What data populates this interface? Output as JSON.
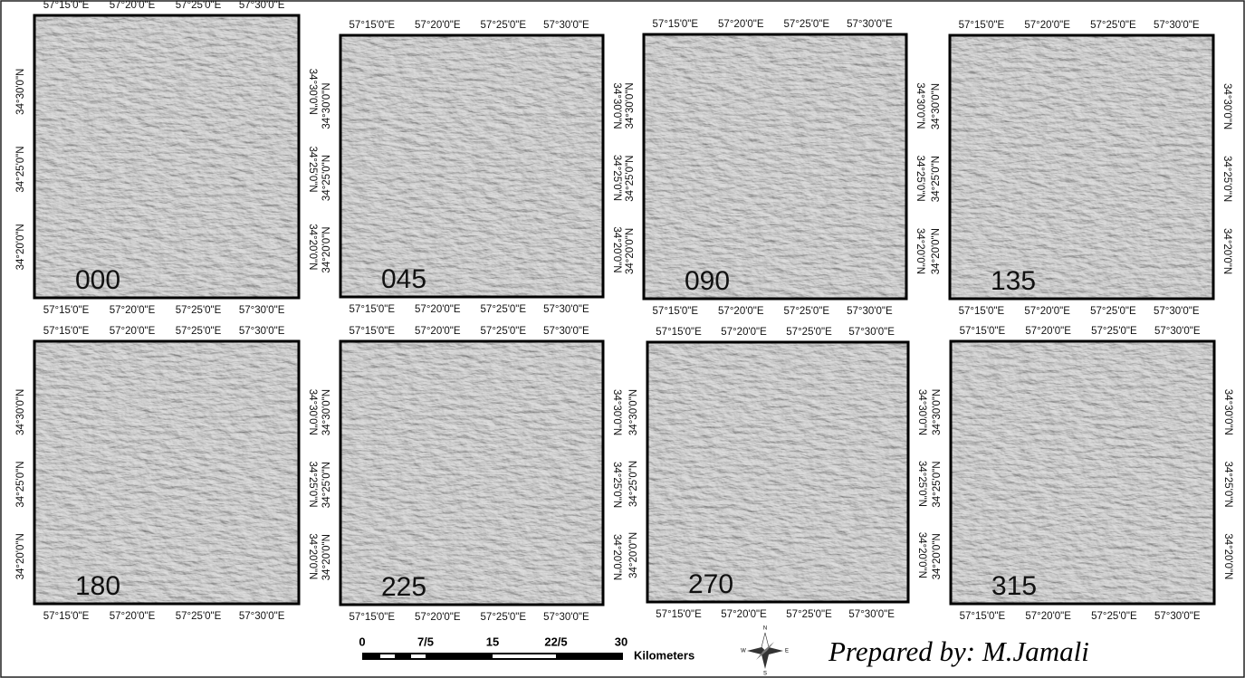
{
  "panels": [
    {
      "label": "000"
    },
    {
      "label": "045"
    },
    {
      "label": "090"
    },
    {
      "label": "135"
    },
    {
      "label": "180"
    },
    {
      "label": "225"
    },
    {
      "label": "270"
    },
    {
      "label": "315"
    }
  ],
  "longitude_labels": [
    "57°15'0\"E",
    "57°20'0\"E",
    "57°25'0\"E",
    "57°30'0\"E"
  ],
  "latitude_labels": [
    "34°30'0\"N",
    "34°25'0\"N",
    "34°20'0\"N"
  ],
  "scale_bar": {
    "labels": [
      "0",
      "7/5",
      "15",
      "22/5",
      "30"
    ],
    "unit": "Kilometers"
  },
  "compass": {
    "north": "N",
    "east": "E",
    "south": "S",
    "west": "W"
  },
  "credit": "Prepared by: M.Jamali"
}
